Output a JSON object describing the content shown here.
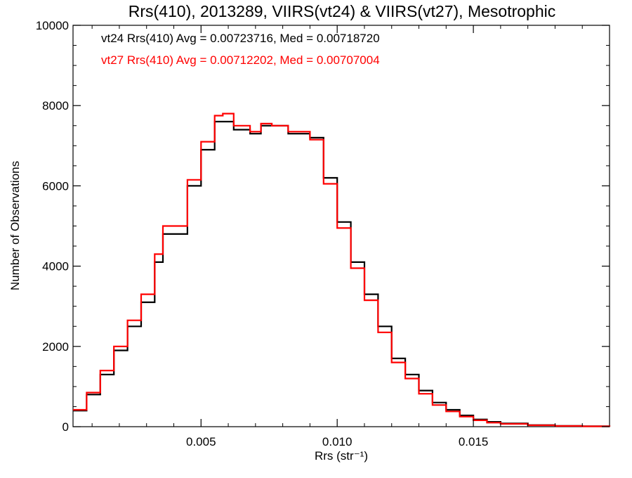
{
  "chart_data": {
    "type": "line",
    "title": "Rrs(410), 2013289, VIIRS(vt24) & VIIRS(vt27), Mesotrophic",
    "xlabel": "Rrs (str⁻¹)",
    "ylabel": "Number of Observations",
    "xlim": [
      0.0003,
      0.02
    ],
    "ylim": [
      0,
      10000
    ],
    "x_ticks": [
      0.005,
      0.01,
      0.015
    ],
    "x_tick_labels": [
      "0.005",
      "0.010",
      "0.015"
    ],
    "y_ticks": [
      0,
      2000,
      4000,
      6000,
      8000,
      10000
    ],
    "y_tick_labels": [
      "0",
      "2000",
      "4000",
      "6000",
      "8000",
      "10000"
    ],
    "grid": false,
    "legend_position": "top-left",
    "colors": {
      "vt24": "#000000",
      "vt27": "#ff0000"
    },
    "annotations": [
      {
        "text": "vt24 Rrs(410) Avg = 0.00723716, Med = 0.00718720",
        "color": "#000000"
      },
      {
        "text": "vt27 Rrs(410) Avg = 0.00712202, Med = 0.00707004",
        "color": "#ff0000"
      }
    ],
    "series": [
      {
        "color": "#000000",
        "x": [
          0.0003,
          0.0008,
          0.0013,
          0.0018,
          0.0023,
          0.0028,
          0.0033,
          0.0036,
          0.004,
          0.0045,
          0.005,
          0.0055,
          0.0058,
          0.0062,
          0.0068,
          0.0072,
          0.0076,
          0.0082,
          0.009,
          0.0095,
          0.01,
          0.0105,
          0.011,
          0.0115,
          0.012,
          0.0125,
          0.013,
          0.0135,
          0.014,
          0.0145,
          0.015,
          0.0155,
          0.016,
          0.017,
          0.018,
          0.019,
          0.02
        ],
        "y": [
          400,
          800,
          1300,
          1900,
          2500,
          3100,
          4100,
          4800,
          4800,
          6000,
          6900,
          7600,
          7600,
          7400,
          7300,
          7500,
          7500,
          7300,
          7200,
          6200,
          5100,
          4100,
          3300,
          2500,
          1700,
          1300,
          900,
          600,
          420,
          280,
          180,
          120,
          80,
          40,
          20,
          10,
          5
        ]
      },
      {
        "color": "#ff0000",
        "x": [
          0.0003,
          0.0008,
          0.0013,
          0.0018,
          0.0023,
          0.0028,
          0.0033,
          0.0036,
          0.004,
          0.0045,
          0.005,
          0.0055,
          0.0058,
          0.0062,
          0.0068,
          0.0072,
          0.0076,
          0.0082,
          0.009,
          0.0095,
          0.01,
          0.0105,
          0.011,
          0.0115,
          0.012,
          0.0125,
          0.013,
          0.0135,
          0.014,
          0.0145,
          0.015,
          0.0155,
          0.016,
          0.017,
          0.018,
          0.019,
          0.02
        ],
        "y": [
          420,
          850,
          1400,
          2000,
          2650,
          3300,
          4300,
          5000,
          5000,
          6150,
          7100,
          7750,
          7800,
          7500,
          7350,
          7550,
          7500,
          7350,
          7150,
          6050,
          4950,
          3950,
          3150,
          2350,
          1600,
          1200,
          820,
          540,
          380,
          250,
          160,
          100,
          70,
          35,
          18,
          8,
          4
        ]
      }
    ]
  }
}
